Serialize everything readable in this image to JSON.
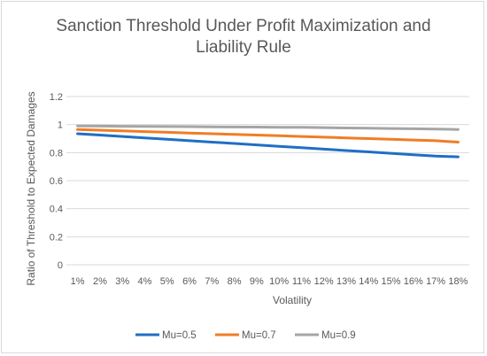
{
  "chart_data": {
    "type": "line",
    "title_line1": "Sanction Threshold Under Profit Maximization and",
    "title_line2": "Liability Rule",
    "xlabel": "Volatility",
    "ylabel": "Ratio of  Threshold to Expected Damages",
    "categories": [
      "1%",
      "2%",
      "3%",
      "4%",
      "5%",
      "6%",
      "7%",
      "8%",
      "9%",
      "10%",
      "11%",
      "12%",
      "13%",
      "14%",
      "15%",
      "16%",
      "17%",
      "18%"
    ],
    "ylim": [
      0,
      1.2
    ],
    "yticks": [
      "0",
      "0.2",
      "0.4",
      "0.6",
      "0.8",
      "1",
      "1.2"
    ],
    "ytick_values": [
      0,
      0.2,
      0.4,
      0.6,
      0.8,
      1.0,
      1.2
    ],
    "grid": true,
    "legend_position": "bottom",
    "series": [
      {
        "name": "Mu=0.5",
        "color": "#1f6fc5",
        "values": [
          0.935,
          0.925,
          0.915,
          0.905,
          0.895,
          0.885,
          0.875,
          0.865,
          0.855,
          0.845,
          0.835,
          0.825,
          0.815,
          0.805,
          0.795,
          0.785,
          0.775,
          0.77
        ]
      },
      {
        "name": "Mu=0.7",
        "color": "#f07d24",
        "values": [
          0.965,
          0.96,
          0.955,
          0.95,
          0.945,
          0.94,
          0.935,
          0.93,
          0.925,
          0.92,
          0.915,
          0.91,
          0.905,
          0.9,
          0.895,
          0.89,
          0.885,
          0.875
        ]
      },
      {
        "name": "Mu=0.9",
        "color": "#a5a5a5",
        "values": [
          0.99,
          0.989,
          0.988,
          0.987,
          0.986,
          0.985,
          0.984,
          0.983,
          0.982,
          0.981,
          0.98,
          0.978,
          0.976,
          0.974,
          0.972,
          0.97,
          0.968,
          0.965
        ]
      }
    ]
  }
}
